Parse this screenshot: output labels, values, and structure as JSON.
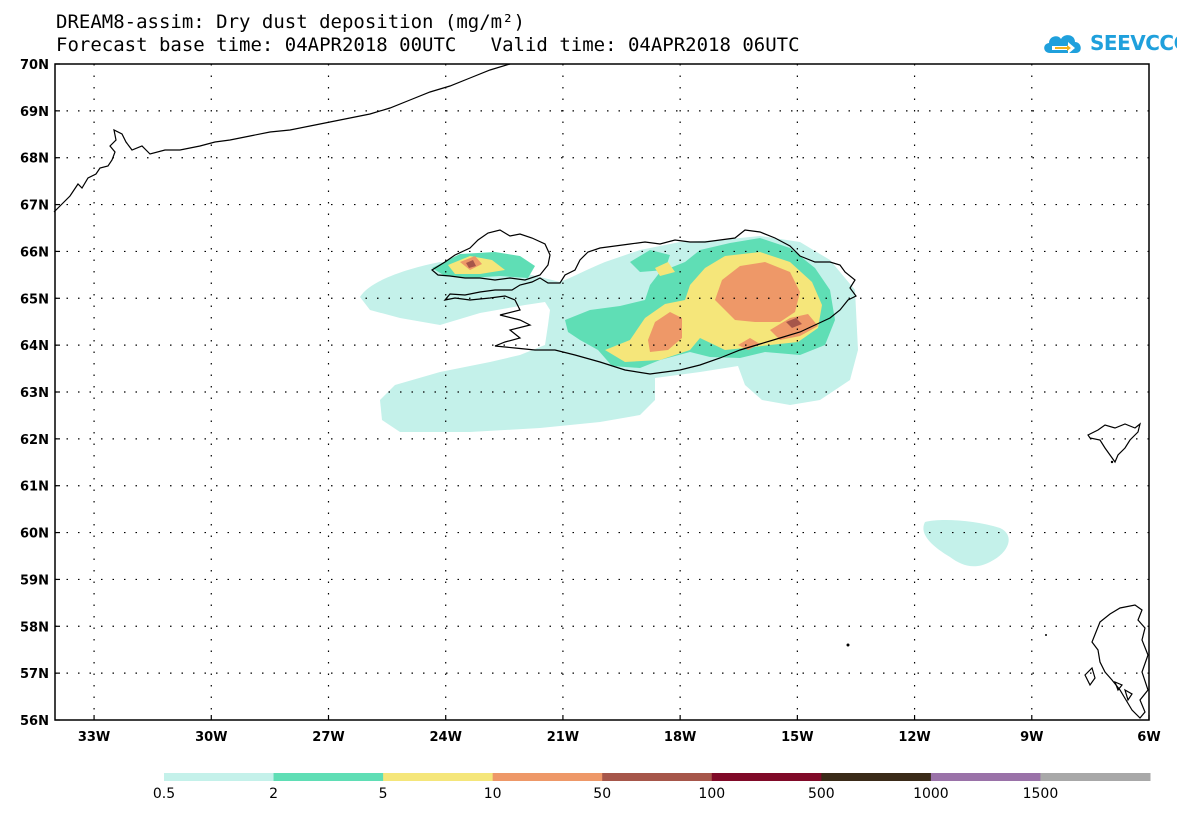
{
  "header": {
    "title_line1": "DREAM8-assim: Dry dust deposition (mg/m²)",
    "title_line2": "Forecast base time: 04APR2018 00UTC   Valid time: 04APR2018 06UTC"
  },
  "logo": {
    "text": "SEEVCCC",
    "icon": "cloud-arrow-icon",
    "color": "#1fa0dc"
  },
  "map": {
    "lat_labels": [
      "70N",
      "69N",
      "68N",
      "67N",
      "66N",
      "65N",
      "64N",
      "63N",
      "62N",
      "61N",
      "60N",
      "59N",
      "58N",
      "57N",
      "56N"
    ],
    "lon_labels": [
      "33W",
      "30W",
      "27W",
      "24W",
      "21W",
      "18W",
      "15W",
      "12W",
      "9W",
      "6W"
    ],
    "lat_range": [
      56,
      70
    ],
    "lon_range": [
      -34,
      -6
    ],
    "grid": "dotted"
  },
  "colorbar": {
    "labels": [
      "0.5",
      "2",
      "5",
      "10",
      "50",
      "100",
      "500",
      "1000",
      "1500"
    ],
    "colors": [
      "#c4f1ea",
      "#5fdeb5",
      "#f5e67a",
      "#ee9868",
      "#a6564a",
      "#800a28",
      "#3a2a18",
      "#9a72a8",
      "#a8a8a8"
    ]
  }
}
